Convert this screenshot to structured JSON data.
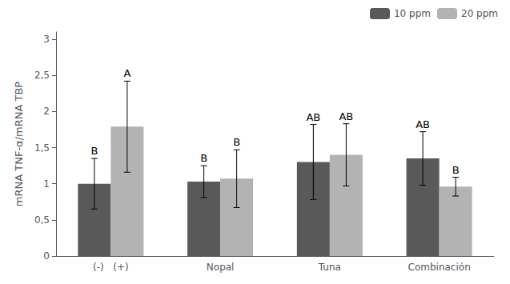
{
  "chart_data": {
    "type": "bar",
    "categories": [
      "(-)   (+)",
      "Nopal",
      "Tuna",
      "Combinación"
    ],
    "series": [
      {
        "name": "10 ppm",
        "color": "#595959",
        "values": [
          1.0,
          1.03,
          1.3,
          1.35
        ],
        "errors": [
          0.35,
          0.22,
          0.52,
          0.37
        ],
        "letters": [
          "B",
          "B",
          "AB",
          "AB"
        ]
      },
      {
        "name": "20 ppm",
        "color": "#b3b3b3",
        "values": [
          1.79,
          1.07,
          1.4,
          0.96
        ],
        "errors": [
          0.63,
          0.4,
          0.43,
          0.13
        ],
        "letters": [
          "A",
          "B",
          "AB",
          "B"
        ]
      }
    ],
    "ylabel": "mRNA TNF-α/mRNA TBP",
    "ylim": [
      0,
      3.1
    ],
    "yticks": [
      0,
      {
        "value": 0.5,
        "label": "0,5"
      },
      1,
      {
        "value": 1.5,
        "label": "1,5"
      },
      2,
      {
        "value": 2.5,
        "label": "2,5"
      },
      3
    ],
    "grid": false,
    "legend": "upper right"
  }
}
